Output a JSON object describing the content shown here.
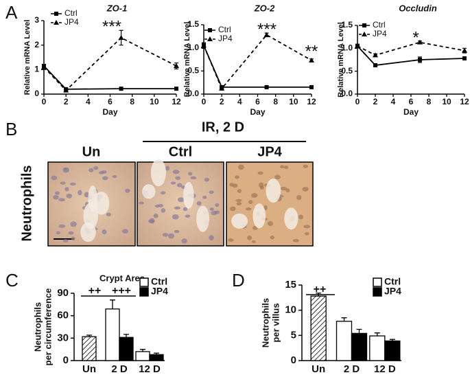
{
  "panel_labels": [
    "A",
    "B",
    "C",
    "D"
  ],
  "image_panel": {
    "header": "IR, 2 D",
    "columns": [
      "Un",
      "Ctrl",
      "JP4"
    ],
    "row_label": "Neutrophils"
  },
  "chart_data": [
    {
      "type": "line",
      "title": "ZO-1",
      "xlabel": "Day",
      "ylabel": "Relative mRNA Level",
      "x": [
        0,
        2,
        7,
        12
      ],
      "xlim": [
        0,
        12
      ],
      "xticks": [
        0,
        2,
        4,
        6,
        8,
        10,
        12
      ],
      "ylim": [
        0,
        3
      ],
      "yticks": [
        0,
        1,
        2,
        3
      ],
      "series": [
        {
          "name": "Ctrl",
          "color": "#000000",
          "marker": "square",
          "dashed": false,
          "values": [
            1.15,
            0.2,
            0.22,
            0.22
          ],
          "errors": [
            0.05,
            0.03,
            0.03,
            0.03
          ]
        },
        {
          "name": "JP4",
          "color": "#000000",
          "marker": "triangle",
          "dashed": true,
          "values": [
            1.1,
            0.15,
            2.3,
            1.15
          ],
          "errors": [
            0.1,
            0.05,
            0.3,
            0.12
          ]
        }
      ],
      "annotations": [
        "***"
      ]
    },
    {
      "type": "line",
      "title": "ZO-2",
      "xlabel": "Day",
      "ylabel": "Relative mRNA Level",
      "x": [
        0,
        2,
        7,
        12
      ],
      "xlim": [
        0,
        12
      ],
      "xticks": [
        0,
        2,
        4,
        6,
        8,
        10,
        12
      ],
      "ylim": [
        0,
        1.5
      ],
      "yticks": [
        {
          "value": 0,
          "label": "0.0"
        },
        {
          "value": 0.5,
          "label": "0.5"
        },
        {
          "value": 1,
          "label": "1.0"
        },
        {
          "value": 1.5,
          "label": "1.5"
        }
      ],
      "series": [
        {
          "name": "Ctrl",
          "color": "#000000",
          "marker": "square",
          "dashed": false,
          "values": [
            1.05,
            0.15,
            0.15,
            0.15
          ],
          "errors": [
            0.05,
            0.02,
            0.01,
            0.01
          ]
        },
        {
          "name": "JP4",
          "color": "#000000",
          "marker": "triangle",
          "dashed": true,
          "values": [
            1.05,
            0.12,
            1.28,
            0.73
          ],
          "errors": [
            0.06,
            0.02,
            0.04,
            0.03
          ]
        }
      ],
      "annotations": [
        "***",
        "**"
      ]
    },
    {
      "type": "line",
      "title": "Occludin",
      "xlabel": "Day",
      "ylabel": "Relative mRNA Level",
      "x": [
        0,
        2,
        7,
        12
      ],
      "xlim": [
        0,
        12
      ],
      "xticks": [
        0,
        2,
        4,
        6,
        8,
        10,
        12
      ],
      "ylim": [
        0,
        1.5
      ],
      "yticks": [
        {
          "value": 0,
          "label": "0.0"
        },
        {
          "value": 0.5,
          "label": "0.5"
        },
        {
          "value": 1,
          "label": "1.0"
        },
        {
          "value": 1.5,
          "label": "1.5"
        }
      ],
      "series": [
        {
          "name": "Ctrl",
          "color": "#000000",
          "marker": "square",
          "dashed": false,
          "values": [
            1.05,
            0.63,
            0.75,
            0.78
          ],
          "errors": [
            0.04,
            0.02,
            0.06,
            0.03
          ]
        },
        {
          "name": "JP4",
          "color": "#000000",
          "marker": "triangle",
          "dashed": true,
          "values": [
            1.05,
            0.85,
            1.13,
            0.95
          ],
          "errors": [
            0.04,
            0.03,
            0.03,
            0.05
          ]
        }
      ],
      "annotations": [
        "*"
      ]
    },
    {
      "type": "bar",
      "title": "Crypt Area",
      "ylabel": [
        "Neutrophils",
        "per circumference"
      ],
      "categories": [
        "Un",
        "2 D",
        "12 D"
      ],
      "ylim": [
        0,
        90
      ],
      "yticks": [
        0,
        30,
        60,
        90
      ],
      "hatched_index": 0,
      "series": [
        {
          "name": "Ctrl",
          "color": "#ffffff",
          "values": [
            32,
            69,
            12
          ],
          "errors": [
            2,
            12,
            3
          ]
        },
        {
          "name": "JP4",
          "color": "#000000",
          "values": [
            null,
            31,
            8
          ],
          "errors": [
            null,
            4,
            2
          ]
        }
      ],
      "annotations": [
        "++",
        "+++"
      ]
    },
    {
      "type": "bar",
      "ylabel": [
        "Neutrophils",
        "per villus"
      ],
      "categories": [
        "Un",
        "2 D",
        "12 D"
      ],
      "ylim": [
        0,
        15
      ],
      "yticks": [
        0,
        5,
        10,
        15
      ],
      "hatched_index": 0,
      "series": [
        {
          "name": "Ctrl",
          "color": "#ffffff",
          "values": [
            12.8,
            7.8,
            4.9
          ],
          "errors": [
            0.6,
            0.7,
            0.6
          ]
        },
        {
          "name": "JP4",
          "color": "#000000",
          "values": [
            null,
            5.4,
            3.9
          ],
          "errors": [
            null,
            0.8,
            0.3
          ]
        }
      ],
      "annotations": [
        "++"
      ]
    }
  ]
}
